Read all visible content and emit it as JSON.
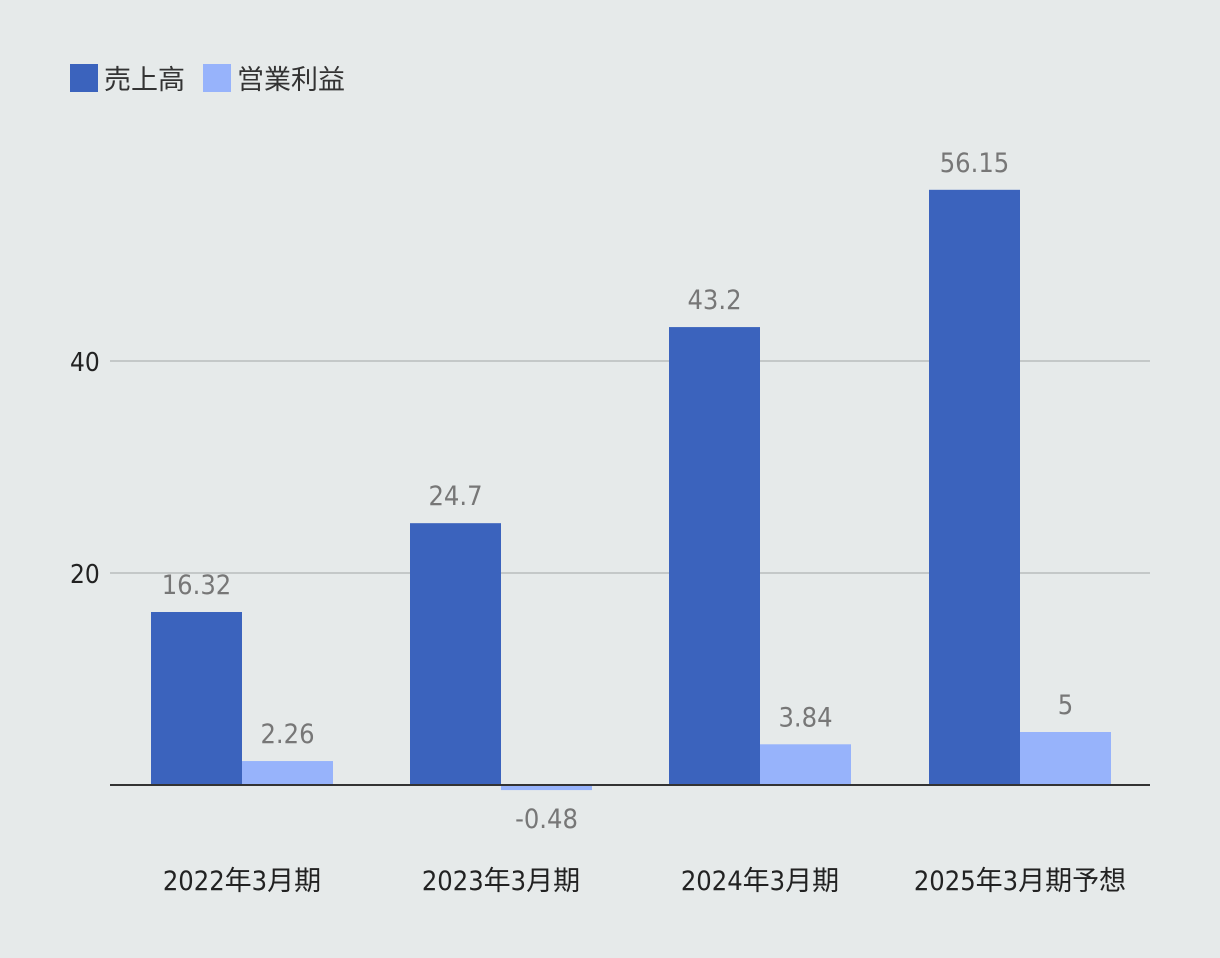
{
  "chart_data": {
    "type": "bar",
    "categories": [
      "2022年3月期",
      "2023年3月期",
      "2024年3月期",
      "2025年3月期予想"
    ],
    "series": [
      {
        "name": "売上高",
        "values": [
          16.32,
          24.7,
          43.2,
          56.15
        ],
        "color": "#3b63bd"
      },
      {
        "name": "営業利益",
        "values": [
          2.26,
          -0.48,
          3.84,
          5
        ],
        "color": "#97b3fb"
      }
    ],
    "value_labels": [
      [
        "16.32",
        "24.7",
        "43.2",
        "56.15"
      ],
      [
        "2.26",
        "-0.48",
        "3.84",
        "5"
      ]
    ],
    "yticks": [
      20,
      40
    ],
    "ytick_labels": [
      "20",
      "40"
    ],
    "ylim": [
      -3,
      60
    ],
    "grid": true,
    "legend_position": "top-left",
    "title": "",
    "xlabel": "",
    "ylabel": ""
  }
}
